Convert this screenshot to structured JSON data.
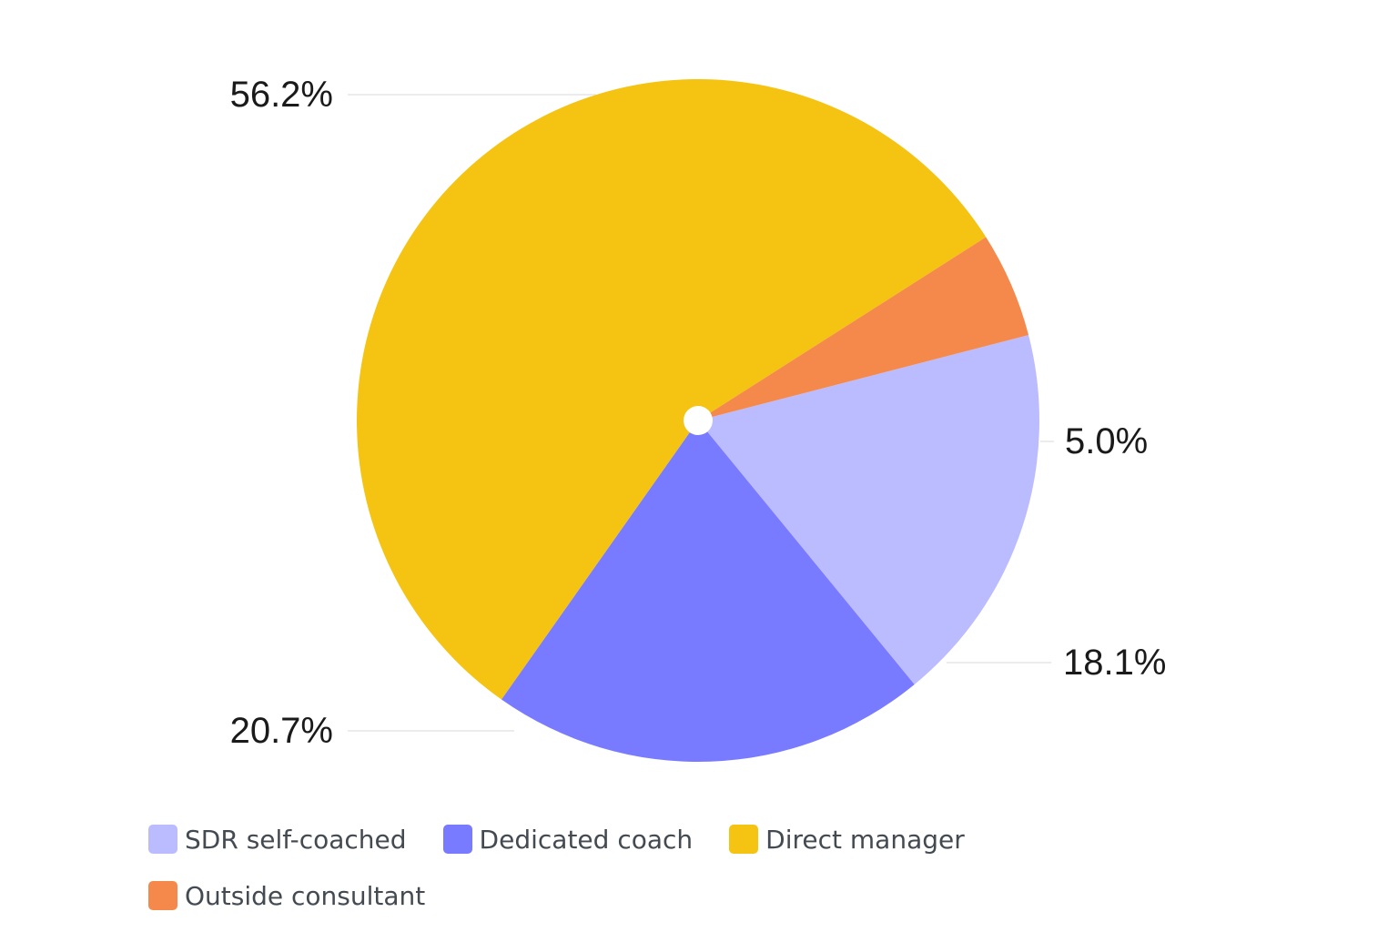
{
  "chart_data": {
    "type": "pie",
    "title": "",
    "categories": [
      "SDR self-coached",
      "Dedicated coach",
      "Direct manager",
      "Outside consultant"
    ],
    "values": [
      18.1,
      20.7,
      56.2,
      5.0
    ],
    "labels": [
      "18.1%",
      "20.7%",
      "56.2%",
      "5.0%"
    ],
    "colors": [
      "#babcff",
      "#787bff",
      "#f5c312",
      "#f4894b"
    ],
    "legend_position": "bottom-left",
    "donut_hole": true,
    "hole_color": "#ffffff"
  }
}
